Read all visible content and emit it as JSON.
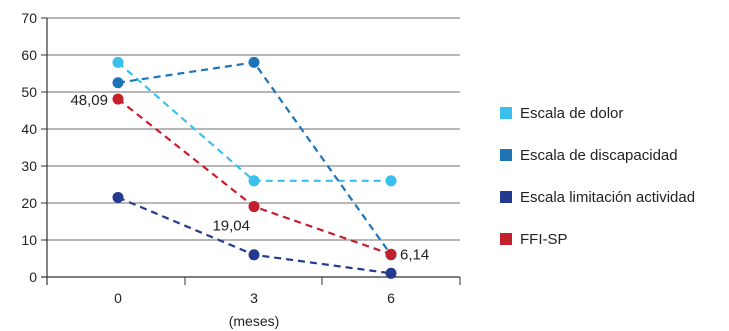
{
  "chart_data": {
    "type": "line",
    "title": "",
    "xlabel": "(meses)",
    "ylabel": "",
    "categories": [
      "0",
      "3",
      "6"
    ],
    "ylim": [
      0,
      70
    ],
    "yticks": [
      0,
      10,
      20,
      30,
      40,
      50,
      60,
      70
    ],
    "grid": true,
    "legend_position": "right",
    "line_style": "dashed",
    "series": [
      {
        "name": "Escala de dolor",
        "color": "#3bbfec",
        "values": [
          58,
          26,
          26
        ]
      },
      {
        "name": "Escala de discapacidad",
        "color": "#1f74b8",
        "values": [
          52.5,
          58,
          6
        ]
      },
      {
        "name": "Escala limitación actividad",
        "color": "#233a8f",
        "values": [
          21.5,
          6,
          1
        ]
      },
      {
        "name": "FFI-SP",
        "color": "#c41f2d",
        "values": [
          48.09,
          19.04,
          6.14
        ]
      }
    ],
    "annotations": [
      {
        "series": 3,
        "index": 0,
        "text": "48,09",
        "side": "left"
      },
      {
        "series": 3,
        "index": 1,
        "text": "19,04",
        "side": "below-left"
      },
      {
        "series": 3,
        "index": 2,
        "text": "6,14",
        "side": "right"
      }
    ]
  }
}
